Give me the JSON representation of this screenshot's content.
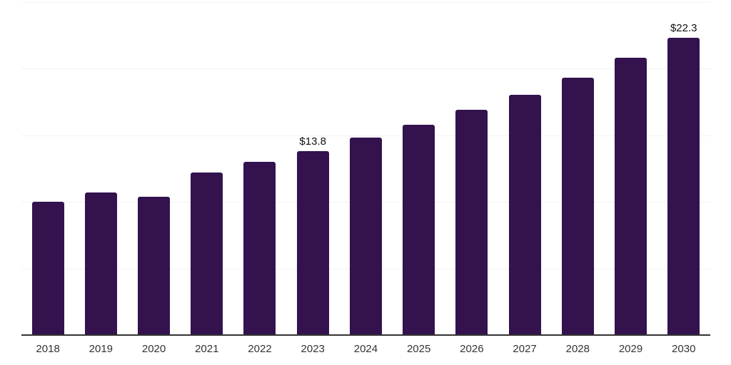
{
  "chart_data": {
    "type": "bar",
    "title": "",
    "xlabel": "",
    "ylabel": "",
    "categories": [
      "2018",
      "2019",
      "2020",
      "2021",
      "2022",
      "2023",
      "2024",
      "2025",
      "2026",
      "2027",
      "2028",
      "2029",
      "2030"
    ],
    "values": [
      10.0,
      10.7,
      10.4,
      12.2,
      13.0,
      13.8,
      14.8,
      15.8,
      16.9,
      18.0,
      19.3,
      20.8,
      22.3
    ],
    "bar_labels": [
      "",
      "",
      "",
      "",
      "",
      "$13.8",
      "",
      "",
      "",
      "",
      "",
      "",
      "$22.3"
    ],
    "ylim": [
      0,
      25
    ],
    "grid_step": 5,
    "grid": true,
    "legend": false,
    "colors": {
      "bar": "#33124E",
      "gridline": "#f2f2f2",
      "axis": "#333333",
      "tick_label": "#333333",
      "bar_label": "#111111"
    }
  }
}
